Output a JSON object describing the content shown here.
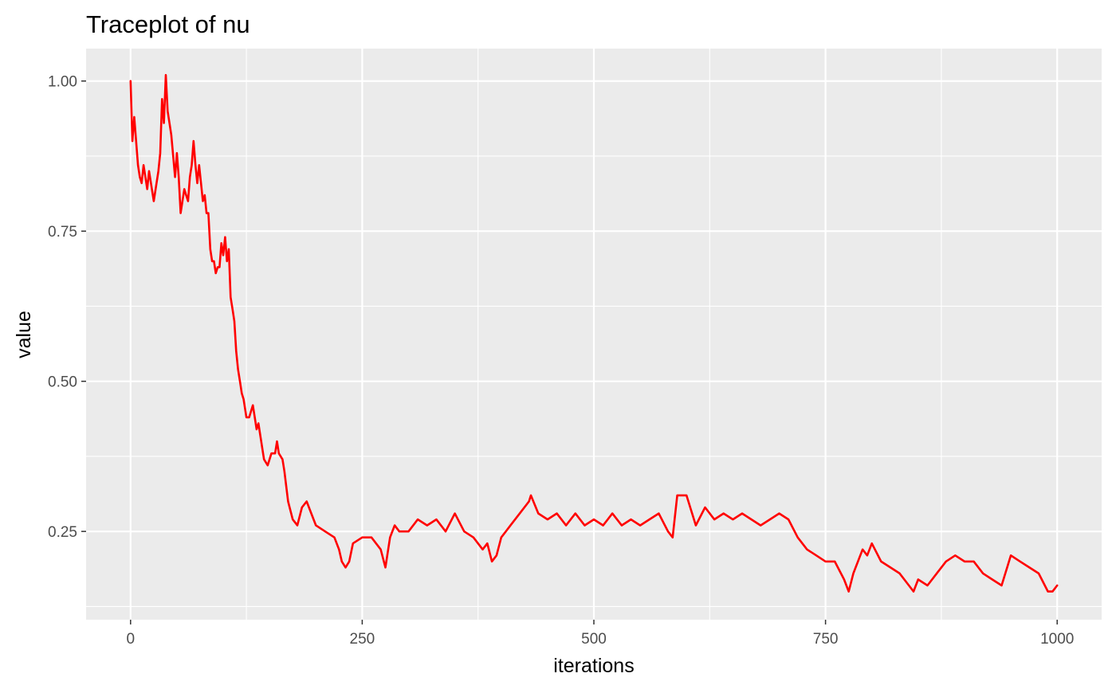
{
  "chart_data": {
    "type": "line",
    "title": "Traceplot of nu",
    "xlabel": "iterations",
    "ylabel": "value",
    "xlim": [
      -48,
      1048
    ],
    "ylim": [
      0.103,
      1.054
    ],
    "x_ticks": [
      0,
      250,
      500,
      750,
      1000
    ],
    "x_tick_labels": [
      "0",
      "250",
      "500",
      "750",
      "1000"
    ],
    "y_ticks": [
      0.25,
      0.5,
      0.75,
      1.0
    ],
    "y_tick_labels": [
      "0.25",
      "0.50",
      "0.75",
      "1.00"
    ],
    "grid": true,
    "legend": "none",
    "panel_background": "#ebebeb",
    "series": [
      {
        "color": "#ff0000",
        "x": [
          0,
          2,
          4,
          8,
          10,
          12,
          14,
          18,
          20,
          25,
          30,
          32,
          34,
          36,
          38,
          40,
          44,
          48,
          50,
          52,
          54,
          58,
          60,
          62,
          64,
          66,
          68,
          70,
          72,
          74,
          78,
          80,
          82,
          84,
          86,
          88,
          90,
          92,
          94,
          96,
          98,
          100,
          102,
          104,
          106,
          108,
          110,
          112,
          114,
          116,
          118,
          120,
          122,
          125,
          128,
          130,
          132,
          134,
          136,
          138,
          140,
          144,
          148,
          152,
          156,
          158,
          160,
          164,
          166,
          170,
          175,
          180,
          185,
          190,
          195,
          200,
          210,
          220,
          225,
          228,
          232,
          236,
          240,
          250,
          260,
          270,
          275,
          280,
          285,
          290,
          300,
          310,
          320,
          330,
          340,
          350,
          360,
          370,
          380,
          385,
          390,
          395,
          400,
          410,
          420,
          430,
          432,
          440,
          450,
          460,
          470,
          480,
          490,
          500,
          510,
          520,
          530,
          540,
          550,
          560,
          570,
          580,
          585,
          590,
          600,
          610,
          620,
          630,
          640,
          650,
          660,
          670,
          680,
          690,
          700,
          710,
          720,
          730,
          740,
          750,
          760,
          770,
          775,
          780,
          790,
          795,
          800,
          810,
          820,
          830,
          840,
          845,
          850,
          860,
          870,
          880,
          890,
          900,
          910,
          920,
          930,
          940,
          950,
          960,
          970,
          980,
          990,
          995,
          1000
        ],
        "values": [
          1.0,
          0.9,
          0.94,
          0.86,
          0.84,
          0.83,
          0.86,
          0.82,
          0.85,
          0.8,
          0.85,
          0.88,
          0.97,
          0.93,
          1.01,
          0.95,
          0.91,
          0.84,
          0.88,
          0.84,
          0.78,
          0.82,
          0.81,
          0.8,
          0.84,
          0.86,
          0.9,
          0.86,
          0.83,
          0.86,
          0.8,
          0.81,
          0.78,
          0.78,
          0.72,
          0.7,
          0.7,
          0.68,
          0.69,
          0.69,
          0.73,
          0.71,
          0.74,
          0.7,
          0.72,
          0.64,
          0.62,
          0.6,
          0.55,
          0.52,
          0.5,
          0.48,
          0.47,
          0.44,
          0.44,
          0.45,
          0.46,
          0.44,
          0.42,
          0.43,
          0.41,
          0.37,
          0.36,
          0.38,
          0.38,
          0.4,
          0.38,
          0.37,
          0.35,
          0.3,
          0.27,
          0.26,
          0.29,
          0.3,
          0.28,
          0.26,
          0.25,
          0.24,
          0.22,
          0.2,
          0.19,
          0.2,
          0.23,
          0.24,
          0.24,
          0.22,
          0.19,
          0.24,
          0.26,
          0.25,
          0.25,
          0.27,
          0.26,
          0.27,
          0.25,
          0.28,
          0.25,
          0.24,
          0.22,
          0.23,
          0.2,
          0.21,
          0.24,
          0.26,
          0.28,
          0.3,
          0.31,
          0.28,
          0.27,
          0.28,
          0.26,
          0.28,
          0.26,
          0.27,
          0.26,
          0.28,
          0.26,
          0.27,
          0.26,
          0.27,
          0.28,
          0.25,
          0.24,
          0.31,
          0.31,
          0.26,
          0.29,
          0.27,
          0.28,
          0.27,
          0.28,
          0.27,
          0.26,
          0.27,
          0.28,
          0.27,
          0.24,
          0.22,
          0.21,
          0.2,
          0.2,
          0.17,
          0.15,
          0.18,
          0.22,
          0.21,
          0.23,
          0.2,
          0.19,
          0.18,
          0.16,
          0.15,
          0.17,
          0.16,
          0.18,
          0.2,
          0.21,
          0.2,
          0.2,
          0.18,
          0.17,
          0.16,
          0.21,
          0.2,
          0.19,
          0.18,
          0.15,
          0.15,
          0.16
        ]
      }
    ]
  }
}
